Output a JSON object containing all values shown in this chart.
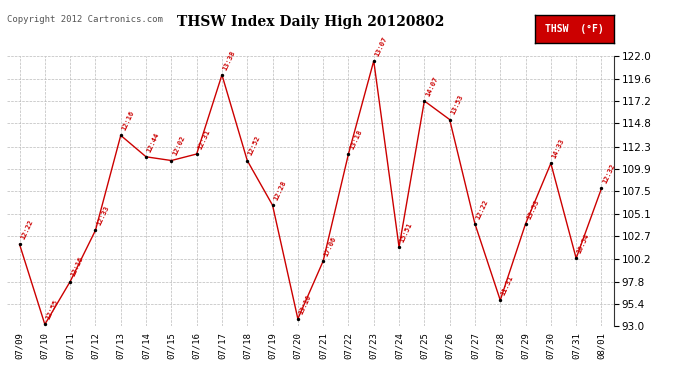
{
  "title": "THSW Index Daily High 20120802",
  "copyright": "Copyright 2012 Cartronics.com",
  "legend_label": "THSW  (°F)",
  "ylim": [
    93.0,
    122.0
  ],
  "yticks": [
    93.0,
    95.4,
    97.8,
    100.2,
    102.7,
    105.1,
    107.5,
    109.9,
    112.3,
    114.8,
    117.2,
    119.6,
    122.0
  ],
  "dates": [
    "07/09",
    "07/10",
    "07/11",
    "07/12",
    "07/13",
    "07/14",
    "07/15",
    "07/16",
    "07/17",
    "07/18",
    "07/19",
    "07/20",
    "07/21",
    "07/22",
    "07/23",
    "07/24",
    "07/25",
    "07/26",
    "07/27",
    "07/28",
    "07/29",
    "07/30",
    "07/31",
    "08/01"
  ],
  "values": [
    101.8,
    93.2,
    97.8,
    103.3,
    113.5,
    111.2,
    110.8,
    111.5,
    120.0,
    110.8,
    106.0,
    93.8,
    100.0,
    111.5,
    121.5,
    101.5,
    117.2,
    115.2,
    104.0,
    95.8,
    104.0,
    110.5,
    100.3,
    107.8
  ],
  "labels": [
    "12:22",
    "12:55",
    "12:16",
    "12:33",
    "12:16",
    "12:44",
    "12:02",
    "12:31",
    "13:38",
    "12:52",
    "12:28",
    "13:10",
    "17:06",
    "13:18",
    "13:07",
    "15:51",
    "14:07",
    "13:53",
    "12:22",
    "11:31",
    "13:53",
    "14:33",
    "10:54",
    "12:32"
  ],
  "line_color": "#cc0000",
  "marker_color": "#000000",
  "label_color": "#cc0000",
  "bg_color": "#ffffff",
  "grid_color": "#bbbbbb",
  "legend_bg": "#cc0000",
  "legend_text_color": "#ffffff"
}
